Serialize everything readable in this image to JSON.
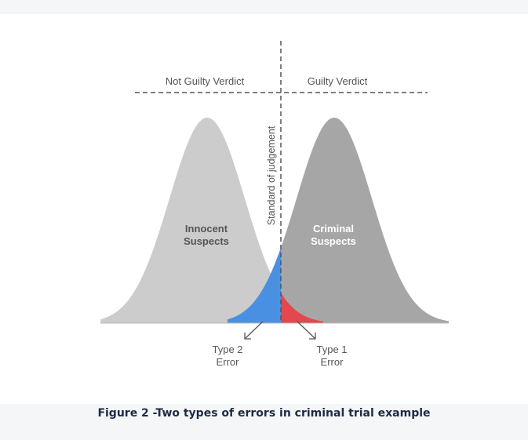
{
  "diagram": {
    "header_left": "Not Guilty Verdict",
    "header_right": "Guilty Verdict",
    "threshold_label": "Standard of judgement",
    "innocent_line1": "Innocent",
    "innocent_line2": "Suspects",
    "criminal_line1": "Criminal",
    "criminal_line2": "Suspects",
    "type2_line1": "Type 2",
    "type2_line2": "Error",
    "type1_line1": "Type 1",
    "type1_line2": "Error",
    "colors": {
      "innocent_curve": "#cccccc",
      "criminal_curve": "#a6a6a6",
      "type2_region": "#4a90e2",
      "type1_region": "#e5474f",
      "text_dark": "#555555",
      "text_light": "#ffffff"
    }
  },
  "caption": "Figure 2 -Two types of errors in criminal trial example"
}
